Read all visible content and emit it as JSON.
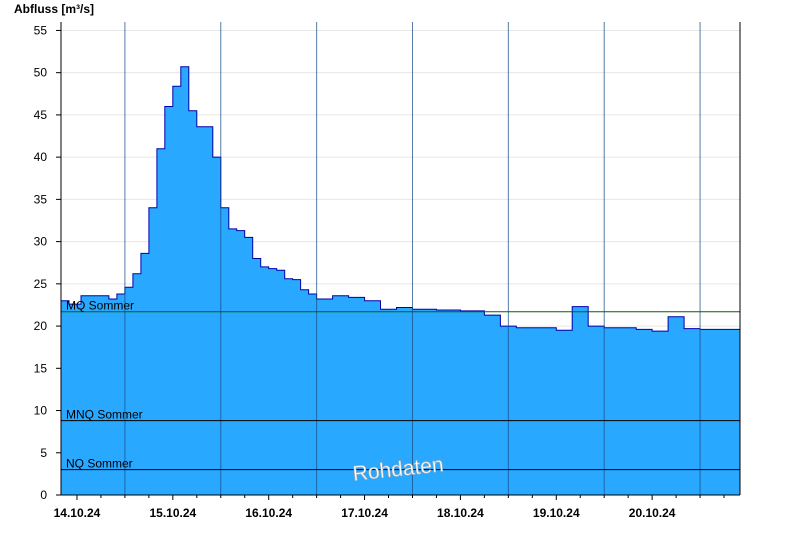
{
  "chart_data": {
    "type": "area",
    "ylabel": "Abfluss [m³/s]",
    "ylim": [
      0,
      56
    ],
    "yticks": [
      0,
      5,
      10,
      15,
      20,
      25,
      30,
      35,
      40,
      45,
      50,
      55
    ],
    "xlim": [
      "13.10.24 20:00",
      "20.10.24 22:00"
    ],
    "day_boundaries": [
      "14.10.24 12:00",
      "15.10.24 12:00",
      "16.10.24 12:00",
      "17.10.24 12:00",
      "18.10.24 12:00",
      "19.10.24 12:00",
      "20.10.24 12:00"
    ],
    "xticks": [
      {
        "label": "14.10.24",
        "x": "14.10.24 00:00"
      },
      {
        "label": "15.10.24",
        "x": "15.10.24 00:00"
      },
      {
        "label": "16.10.24",
        "x": "16.10.24 00:00"
      },
      {
        "label": "17.10.24",
        "x": "17.10.24 00:00"
      },
      {
        "label": "18.10.24",
        "x": "18.10.24 00:00"
      },
      {
        "label": "19.10.24",
        "x": "19.10.24 00:00"
      },
      {
        "label": "20.10.24",
        "x": "20.10.24 00:00"
      }
    ],
    "series": [
      {
        "color": "#29a8ff",
        "line_color": "#0000aa",
        "x": [
          "13.10.24 20:00",
          "13.10.24 22:00",
          "14.10.24 01:00",
          "14.10.24 04:00",
          "14.10.24 06:00",
          "14.10.24 08:00",
          "14.10.24 10:00",
          "14.10.24 12:00",
          "14.10.24 14:00",
          "14.10.24 16:00",
          "14.10.24 18:00",
          "14.10.24 20:00",
          "14.10.24 22:00",
          "15.10.24 00:00",
          "15.10.24 02:00",
          "15.10.24 04:00",
          "15.10.24 06:00",
          "15.10.24 08:00",
          "15.10.24 10:00",
          "15.10.24 12:00",
          "15.10.24 14:00",
          "15.10.24 16:00",
          "15.10.24 18:00",
          "15.10.24 20:00",
          "15.10.24 22:00",
          "16.10.24 00:00",
          "16.10.24 02:00",
          "16.10.24 04:00",
          "16.10.24 06:00",
          "16.10.24 08:00",
          "16.10.24 10:00",
          "16.10.24 12:00",
          "16.10.24 16:00",
          "16.10.24 20:00",
          "17.10.24 00:00",
          "17.10.24 04:00",
          "17.10.24 08:00",
          "17.10.24 12:00",
          "17.10.24 18:00",
          "18.10.24 00:00",
          "18.10.24 06:00",
          "18.10.24 10:00",
          "18.10.24 14:00",
          "18.10.24 20:00",
          "19.10.24 00:00",
          "19.10.24 04:00",
          "19.10.24 08:00",
          "19.10.24 12:00",
          "19.10.24 16:00",
          "19.10.24 20:00",
          "20.10.24 00:00",
          "20.10.24 04:00",
          "20.10.24 08:00",
          "20.10.24 12:00",
          "20.10.24 22:00"
        ],
        "values": [
          23,
          22.6,
          23.6,
          23.6,
          23.6,
          23.2,
          23.8,
          24.6,
          26.2,
          28.6,
          34,
          41,
          46,
          48.4,
          50.7,
          45.5,
          43.6,
          43.6,
          40,
          34,
          31.5,
          31.3,
          30.5,
          28,
          27,
          26.8,
          26.6,
          25.6,
          25.5,
          24.3,
          23.8,
          23.2,
          23.6,
          23.4,
          23,
          22,
          22.2,
          22,
          21.9,
          21.8,
          21.3,
          20,
          19.8,
          19.8,
          19.5,
          22.3,
          20,
          19.8,
          19.8,
          19.6,
          19.4,
          21.1,
          19.7,
          19.6,
          19.2
        ]
      }
    ],
    "reference_lines": [
      {
        "label": "MQ Sommer",
        "value": 21.7,
        "color": "#006600"
      },
      {
        "label": "MNQ Sommer",
        "value": 8.8,
        "color": "#000000"
      },
      {
        "label": "NQ Sommer",
        "value": 3.0,
        "color": "#000000"
      }
    ],
    "annotations": [
      "Rohdaten"
    ],
    "grid": true
  }
}
